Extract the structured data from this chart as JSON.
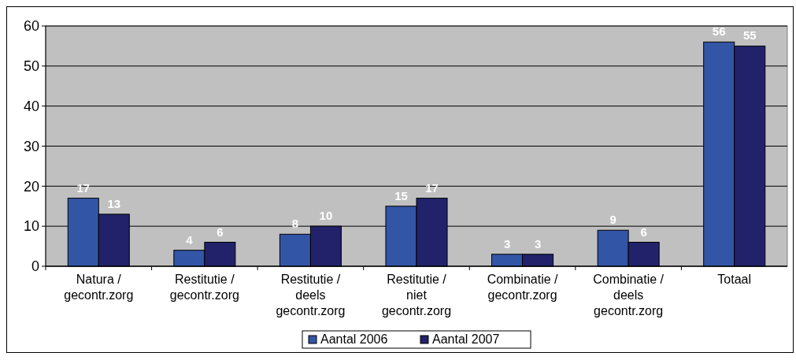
{
  "chart_data": {
    "type": "bar",
    "categories": [
      "Natura / gecontr.zorg",
      "Restitutie / gecontr.zorg",
      "Restitutie / deels gecontr.zorg",
      "Restitutie / niet gecontr.zorg",
      "Combinatie / gecontr.zorg",
      "Combinatie / deels gecontr.zorg",
      "Totaal"
    ],
    "series": [
      {
        "name": "Aantal 2006",
        "color": "#3355a5",
        "values": [
          17,
          4,
          8,
          15,
          3,
          9,
          56
        ]
      },
      {
        "name": "Aantal 2007",
        "color": "#22226b",
        "values": [
          13,
          6,
          10,
          17,
          3,
          6,
          55
        ]
      }
    ],
    "ylim": [
      0,
      60
    ],
    "yticks": [
      0,
      10,
      20,
      30,
      40,
      50,
      60
    ],
    "grid": "y",
    "legend": "bottom",
    "data_labels": true
  }
}
